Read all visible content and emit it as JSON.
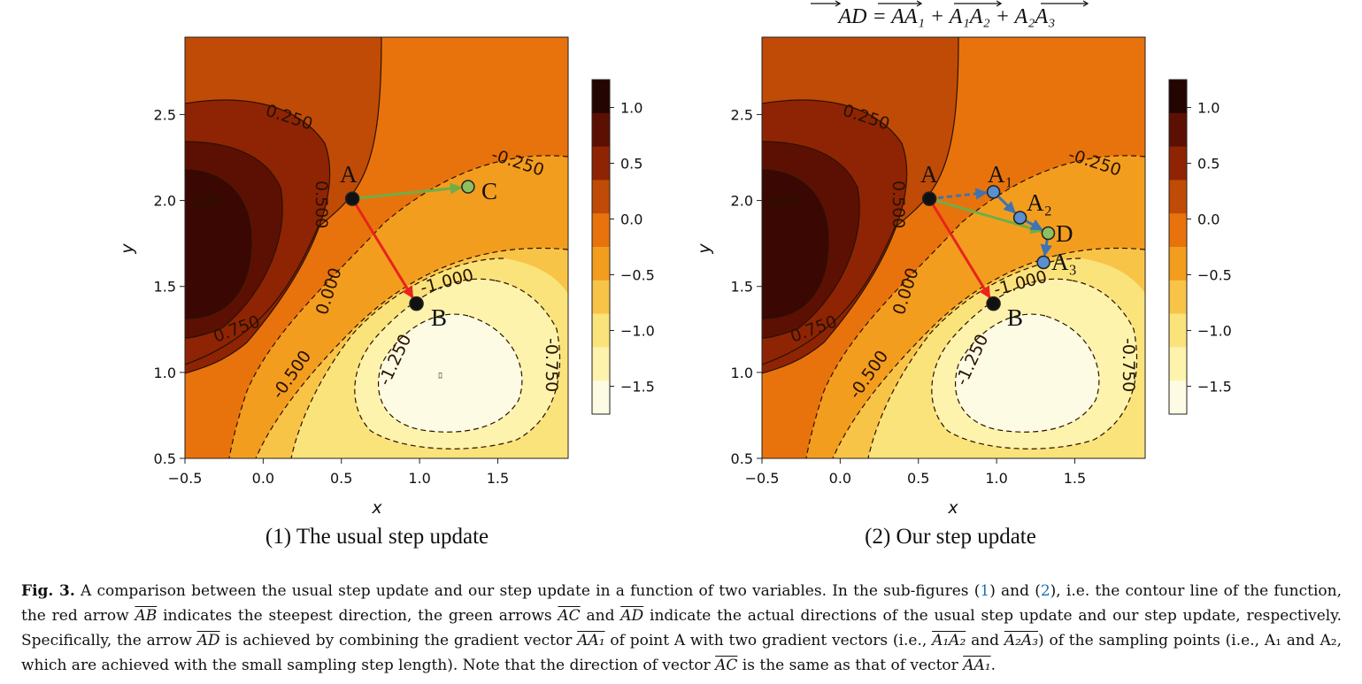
{
  "figure": {
    "equation": "AD = AA₁ + A₁A₂ + A₂A₃",
    "panels": [
      {
        "subtitle": "(1) The usual step update",
        "points": {
          "A": "A",
          "B": "B",
          "C": "C"
        }
      },
      {
        "subtitle": "(2) Our step update",
        "points": {
          "A": "A",
          "B": "B",
          "A1": "A₁",
          "A2": "A₂",
          "D": "D",
          "A3": "A₃"
        }
      }
    ],
    "contour_labels": [
      "0.250",
      "-0.250",
      "0.500",
      "0.000",
      "-1.000",
      "-0.750",
      "-0.500",
      "-1.250",
      "0.750",
      "-0.750",
      "000"
    ]
  },
  "chart_data": [
    {
      "type": "contour",
      "title": "(1) The usual step update",
      "xlabel": "x",
      "ylabel": "y",
      "xlim": [
        -0.5,
        1.95
      ],
      "ylim": [
        0.5,
        2.95
      ],
      "xticks": [
        "−0.5",
        "0.0",
        "0.5",
        "1.0",
        "1.5"
      ],
      "xtick_values": [
        -0.5,
        0,
        0.5,
        1.0,
        1.5
      ],
      "yticks": [
        "0.5",
        "1.0",
        "1.5",
        "2.0",
        "2.5"
      ],
      "ytick_values": [
        0.5,
        1.0,
        1.5,
        2.0,
        2.5
      ],
      "colorbar_ticks": [
        "1.0",
        "0.5",
        "0.0",
        "−0.5",
        "−1.0",
        "−1.5"
      ],
      "colorbar_values": [
        1.0,
        0.5,
        0.0,
        -0.5,
        -1.0,
        -1.5
      ],
      "points": [
        {
          "name": "A",
          "x": 0.57,
          "y": 2.01
        },
        {
          "name": "B",
          "x": 0.98,
          "y": 1.4
        },
        {
          "name": "C",
          "x": 1.31,
          "y": 2.08
        }
      ],
      "arrows": [
        {
          "from": "A",
          "to": "B",
          "color": "red"
        },
        {
          "from": "A",
          "to": "C",
          "color": "green"
        }
      ]
    },
    {
      "type": "contour",
      "title": "(2) Our step update",
      "xlabel": "x",
      "ylabel": "y",
      "xlim": [
        -0.5,
        1.95
      ],
      "ylim": [
        0.5,
        2.95
      ],
      "xticks": [
        "−0.5",
        "0.0",
        "0.5",
        "1.0",
        "1.5"
      ],
      "xtick_values": [
        -0.5,
        0,
        0.5,
        1.0,
        1.5
      ],
      "yticks": [
        "0.5",
        "1.0",
        "1.5",
        "2.0",
        "2.5"
      ],
      "ytick_values": [
        0.5,
        1.0,
        1.5,
        2.0,
        2.5
      ],
      "colorbar_ticks": [
        "1.0",
        "0.5",
        "0.0",
        "−0.5",
        "−1.0",
        "−1.5"
      ],
      "colorbar_values": [
        1.0,
        0.5,
        0.0,
        -0.5,
        -1.0,
        -1.5
      ],
      "points": [
        {
          "name": "A",
          "x": 0.57,
          "y": 2.01
        },
        {
          "name": "B",
          "x": 0.98,
          "y": 1.4
        },
        {
          "name": "A1",
          "x": 0.98,
          "y": 2.05
        },
        {
          "name": "A2",
          "x": 1.15,
          "y": 1.9
        },
        {
          "name": "D",
          "x": 1.33,
          "y": 1.81
        },
        {
          "name": "A3",
          "x": 1.3,
          "y": 1.64
        }
      ],
      "arrows": [
        {
          "from": "A",
          "to": "B",
          "color": "red"
        },
        {
          "from": "A",
          "to": "D",
          "color": "green"
        },
        {
          "from": "A",
          "to": "A1",
          "color": "blue",
          "style": "dashed"
        },
        {
          "from": "A1",
          "to": "A2",
          "color": "blue"
        },
        {
          "from": "A2",
          "to": "D",
          "color": "blue"
        },
        {
          "from": "D",
          "to": "A3",
          "color": "blue"
        }
      ]
    }
  ],
  "caption": {
    "label": "Fig. 3.",
    "ref1": "1",
    "ref2": "2",
    "t1": " A comparison between the usual step update and our step update in a function of two variables. In the sub-figures (",
    "t2": ") and (",
    "t3": "), i.e. the contour line of the function, the red arrow ",
    "v_AB": "AB",
    "t4": " indicates the steepest direction, the green arrows ",
    "v_AC": "AC",
    "t5": " and ",
    "v_AD": "AD",
    "t6": " indicate the actual directions of the usual step update and our step update, respectively. Specifically, the arrow ",
    "v_AD2": "AD",
    "t7": " is achieved by combining the gradient vector ",
    "v_AA1": "AA₁",
    "t8": " of point A with two gradient vectors (i.e., ",
    "v_A1A2": "A₁A₂",
    "t9": " and ",
    "v_A2A3": "A₂A₃",
    "t10": ") of the sampling points (i.e., A₁ and A₂, which are achieved with the small sampling step length). Note that the direction of vector ",
    "v_AC2": "AC",
    "t11": " is the same as that of vector ",
    "v_AA1b": "AA₁",
    "t12": "."
  },
  "colors": {
    "red_arrow": "#e8241c",
    "green_arrow": "#6fae46",
    "blue_arrow": "#3f74b0",
    "blue_point": "#5a8fd0",
    "green_point": "#8dc060"
  }
}
